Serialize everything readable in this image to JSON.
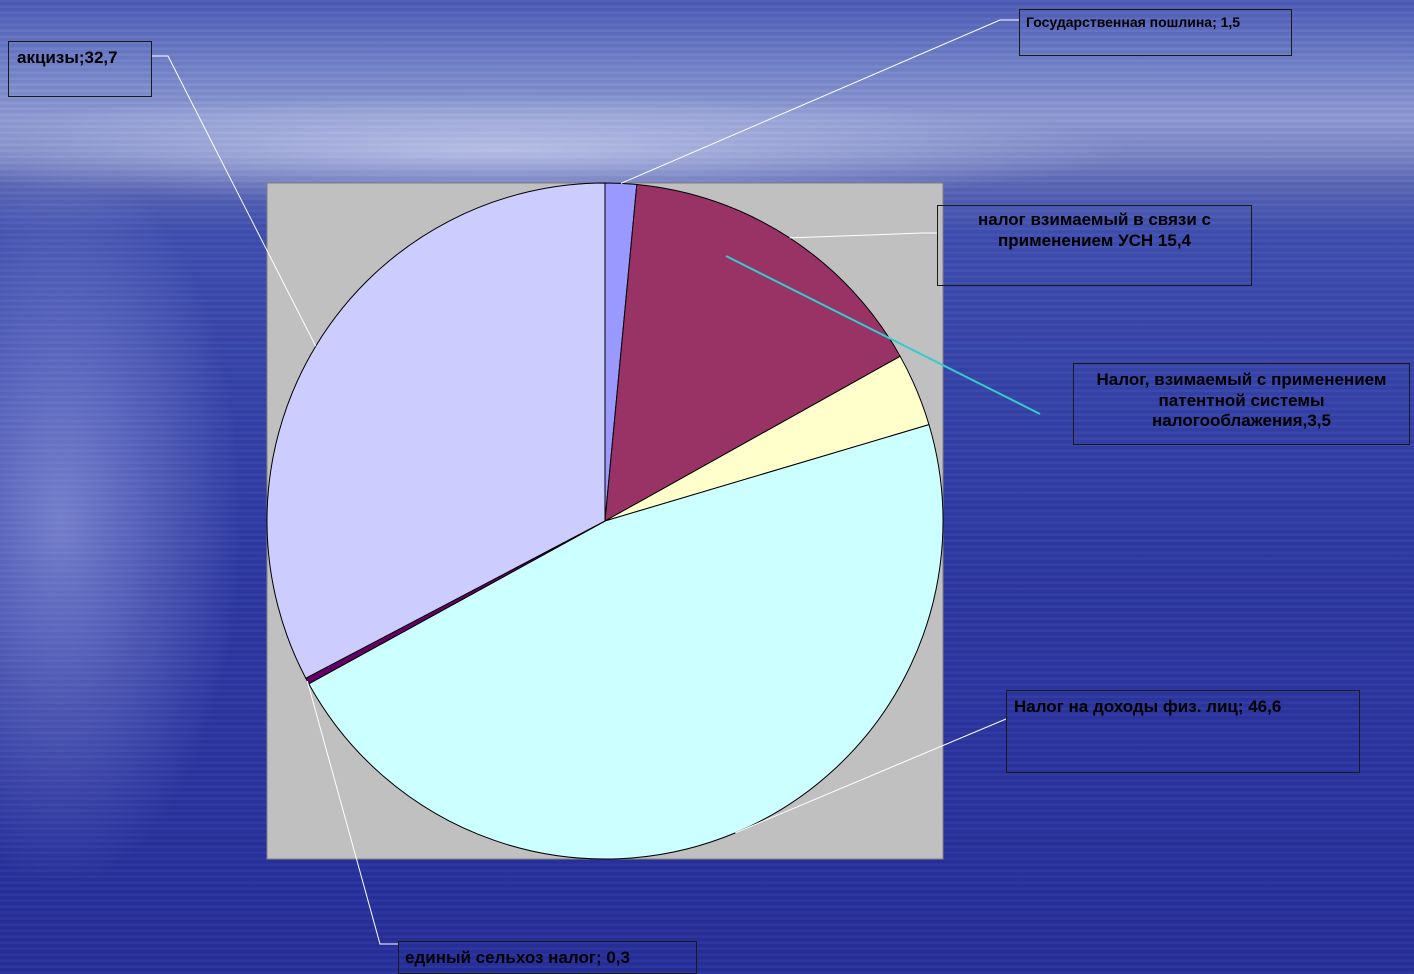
{
  "chart_data": {
    "type": "pie",
    "title": "",
    "legend": "none",
    "slices": [
      {
        "label": "Государственная пошлина; 1,5",
        "value": 1.5,
        "color": "#9999ff"
      },
      {
        "label": "налог взимаемый  в связи с применением УСН  15,4",
        "value": 15.4,
        "color": "#993366"
      },
      {
        "label": "Налог, взимаемый с применением патентной системы налогооблажения,3,5",
        "value": 3.5,
        "color": "#ffffcc"
      },
      {
        "label": "Налог на доходы физ. лиц; 46,6",
        "value": 46.6,
        "color": "#ccffff"
      },
      {
        "label": "единый сельхоз налог; 0,3",
        "value": 0.3,
        "color": "#660066"
      },
      {
        "label": "акцизы;32,7",
        "value": 32.7,
        "color": "#ccccff"
      }
    ],
    "plot_background": "#c0c0c0"
  }
}
